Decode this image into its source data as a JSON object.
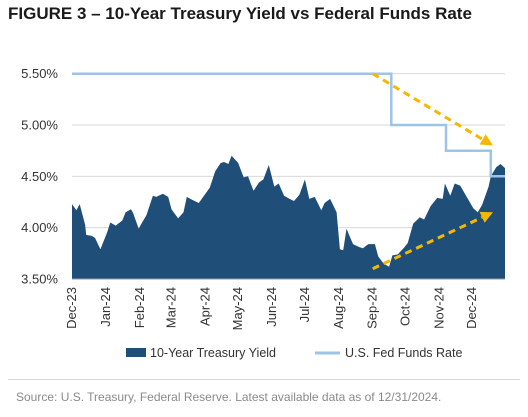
{
  "chart_data": {
    "type": "area",
    "title": "FIGURE 3 – 10-Year Treasury Yield vs Federal Funds Rate",
    "source": "Source: U.S. Treasury, Federal Reserve. Latest available data as of 12/31/2024.",
    "xlabel": "",
    "ylabel": "",
    "ylim": [
      3.5,
      5.75
    ],
    "yticks": [
      "3.50%",
      "4.00%",
      "4.50%",
      "5.00%",
      "5.50%"
    ],
    "ytick_values": [
      3.5,
      4.0,
      4.5,
      5.0,
      5.5
    ],
    "xlim": [
      "2023-12-01",
      "2024-12-31"
    ],
    "xtick_labels": [
      "Dec-23",
      "Jan-24",
      "Feb-24",
      "Mar-24",
      "Apr-24",
      "May-24",
      "Jun-24",
      "Jul-24",
      "Aug-24",
      "Sep-24",
      "Oct-24",
      "Nov-24",
      "Dec-24"
    ],
    "xtick_dates": [
      "2023-12-01",
      "2024-01-01",
      "2024-02-01",
      "2024-03-01",
      "2024-04-01",
      "2024-05-01",
      "2024-06-01",
      "2024-07-01",
      "2024-08-01",
      "2024-09-01",
      "2024-10-01",
      "2024-11-01",
      "2024-12-01"
    ],
    "grid": "horizontal",
    "legend_position": "bottom",
    "series": [
      {
        "name": "10-Year Treasury Yield",
        "type": "area",
        "color": "#1f4e79",
        "x": [
          "2023-12-01",
          "2023-12-05",
          "2023-12-08",
          "2023-12-13",
          "2023-12-14",
          "2023-12-19",
          "2023-12-22",
          "2023-12-27",
          "2024-01-02",
          "2024-01-05",
          "2024-01-10",
          "2024-01-16",
          "2024-01-19",
          "2024-01-24",
          "2024-01-26",
          "2024-01-31",
          "2024-02-02",
          "2024-02-07",
          "2024-02-13",
          "2024-02-16",
          "2024-02-22",
          "2024-02-27",
          "2024-03-01",
          "2024-03-07",
          "2024-03-12",
          "2024-03-15",
          "2024-03-20",
          "2024-03-26",
          "2024-04-01",
          "2024-04-05",
          "2024-04-10",
          "2024-04-15",
          "2024-04-18",
          "2024-04-22",
          "2024-04-25",
          "2024-05-01",
          "2024-05-06",
          "2024-05-10",
          "2024-05-15",
          "2024-05-20",
          "2024-05-24",
          "2024-05-29",
          "2024-06-03",
          "2024-06-07",
          "2024-06-12",
          "2024-06-17",
          "2024-06-21",
          "2024-06-26",
          "2024-07-01",
          "2024-07-05",
          "2024-07-10",
          "2024-07-16",
          "2024-07-19",
          "2024-07-24",
          "2024-07-30",
          "2024-08-02",
          "2024-08-05",
          "2024-08-08",
          "2024-08-14",
          "2024-08-20",
          "2024-08-23",
          "2024-08-28",
          "2024-09-03",
          "2024-09-06",
          "2024-09-11",
          "2024-09-16",
          "2024-09-19",
          "2024-09-24",
          "2024-09-30",
          "2024-10-03",
          "2024-10-08",
          "2024-10-14",
          "2024-10-18",
          "2024-10-24",
          "2024-10-30",
          "2024-11-04",
          "2024-11-06",
          "2024-11-11",
          "2024-11-15",
          "2024-11-20",
          "2024-11-26",
          "2024-12-02",
          "2024-12-06",
          "2024-12-10",
          "2024-12-16",
          "2024-12-18",
          "2024-12-23",
          "2024-12-27",
          "2024-12-31"
        ],
        "values": [
          4.23,
          4.17,
          4.23,
          4.03,
          3.93,
          3.92,
          3.9,
          3.79,
          3.95,
          4.05,
          4.02,
          4.07,
          4.15,
          4.18,
          4.14,
          3.99,
          4.03,
          4.12,
          4.31,
          4.3,
          4.33,
          4.3,
          4.18,
          4.09,
          4.15,
          4.3,
          4.27,
          4.24,
          4.33,
          4.39,
          4.55,
          4.63,
          4.64,
          4.62,
          4.7,
          4.63,
          4.49,
          4.5,
          4.36,
          4.44,
          4.47,
          4.61,
          4.4,
          4.43,
          4.31,
          4.28,
          4.26,
          4.32,
          4.47,
          4.28,
          4.3,
          4.17,
          4.24,
          4.28,
          4.15,
          3.79,
          3.78,
          3.99,
          3.84,
          3.81,
          3.8,
          3.84,
          3.84,
          3.72,
          3.65,
          3.62,
          3.73,
          3.74,
          3.81,
          3.85,
          4.04,
          4.1,
          4.08,
          4.21,
          4.29,
          4.28,
          4.43,
          4.31,
          4.43,
          4.41,
          4.3,
          4.19,
          4.15,
          4.22,
          4.4,
          4.5,
          4.59,
          4.62,
          4.58
        ]
      },
      {
        "name": "U.S. Fed Funds Rate",
        "type": "step",
        "color": "#9dc3e6",
        "x": [
          "2023-12-01",
          "2024-09-18",
          "2024-11-07",
          "2024-12-18",
          "2024-12-31"
        ],
        "values": [
          5.5,
          5.0,
          4.75,
          4.5,
          4.5
        ]
      }
    ],
    "annotations": [
      {
        "type": "arrow",
        "color": "#f5b800",
        "from": {
          "x": "2024-09-01",
          "y": 5.5
        },
        "to": {
          "x": "2024-12-20",
          "y": 4.8
        }
      },
      {
        "type": "arrow",
        "color": "#f5b800",
        "from": {
          "x": "2024-09-01",
          "y": 3.6
        },
        "to": {
          "x": "2024-12-20",
          "y": 4.15
        }
      }
    ]
  }
}
